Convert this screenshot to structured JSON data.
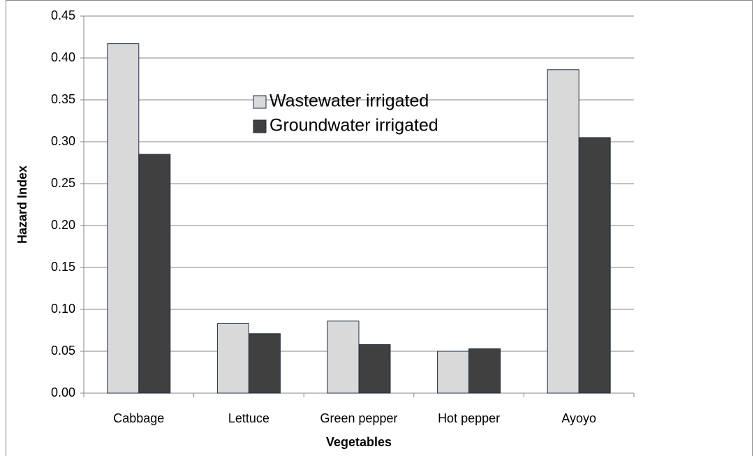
{
  "chart_data": {
    "type": "bar",
    "xlabel": "Vegetables",
    "ylabel": "Hazard Index",
    "categories": [
      "Cabbage",
      "Lettuce",
      "Green pepper",
      "Hot pepper",
      "Ayoyo"
    ],
    "series": [
      {
        "name": "Wastewater irrigated",
        "color": "#d9d9d9",
        "values": [
          0.417,
          0.083,
          0.086,
          0.05,
          0.386
        ]
      },
      {
        "name": "Groundwater irrigated",
        "color": "#404040",
        "values": [
          0.285,
          0.071,
          0.058,
          0.053,
          0.305
        ]
      }
    ],
    "ylim": [
      0,
      0.45
    ],
    "yticks": [
      {
        "value": 0,
        "label": "0.00"
      },
      0.05,
      {
        "value": 0.1,
        "label": "0.10"
      },
      0.15,
      {
        "value": 0.2,
        "label": "0.20"
      },
      0.25,
      {
        "value": 0.3,
        "label": "0.30"
      },
      0.35,
      {
        "value": 0.4,
        "label": "0.40"
      },
      0.45
    ],
    "grid": true
  }
}
